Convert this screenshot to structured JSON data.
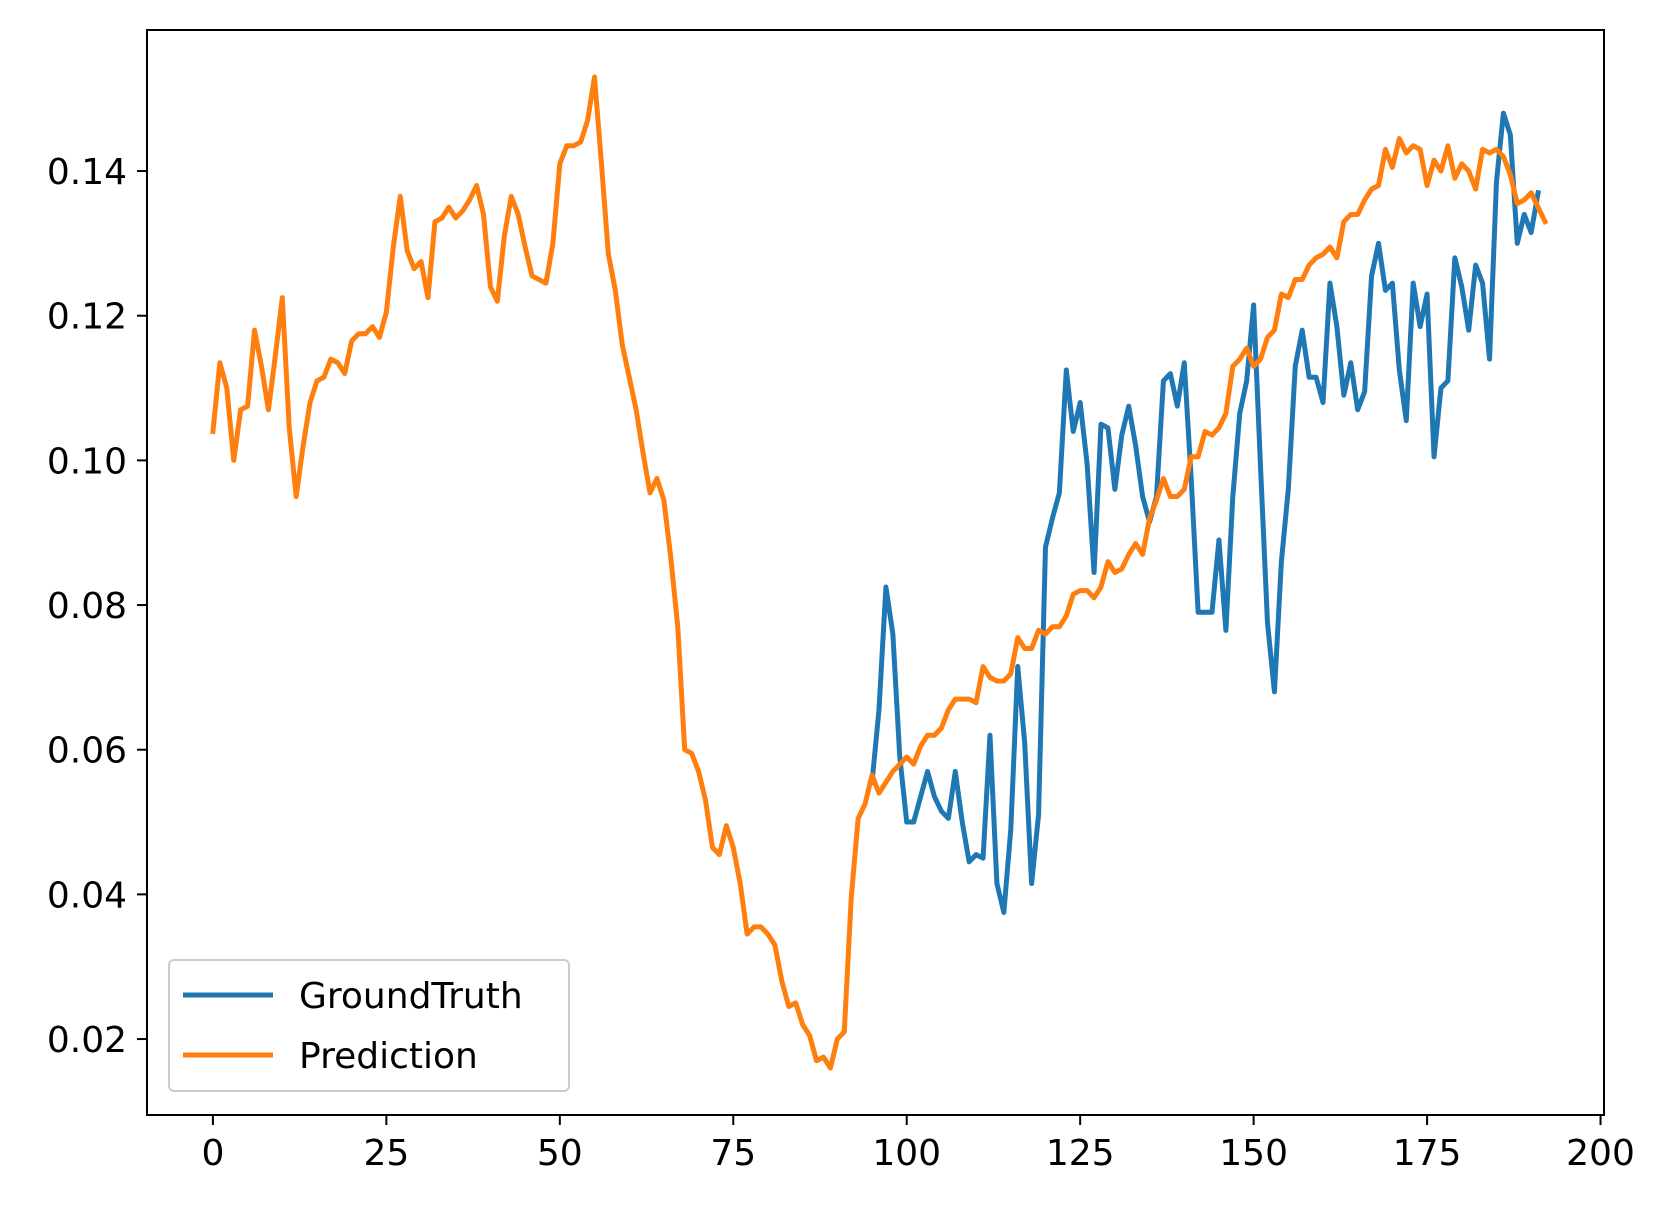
{
  "chart_data": {
    "type": "line",
    "title": "",
    "xlabel": "",
    "ylabel": "",
    "xlim": [
      -9.5,
      200.5
    ],
    "ylim": [
      0.0095,
      0.1595
    ],
    "x_ticks": [
      0,
      25,
      50,
      75,
      100,
      125,
      150,
      175,
      200
    ],
    "x_tick_labels": [
      "0",
      "25",
      "50",
      "75",
      "100",
      "125",
      "150",
      "175",
      "200"
    ],
    "y_ticks": [
      0.02,
      0.04,
      0.06,
      0.08,
      0.1,
      0.12,
      0.14
    ],
    "y_tick_labels": [
      "0.02",
      "0.04",
      "0.06",
      "0.08",
      "0.10",
      "0.12",
      "0.14"
    ],
    "grid": false,
    "legend_position": "lower-left",
    "series": [
      {
        "name": "GroundTruth",
        "color": "#1f77b4",
        "x_start": 95,
        "values": [
          0.0555,
          0.0655,
          0.0825,
          0.076,
          0.059,
          0.05,
          0.05,
          0.0535,
          0.057,
          0.0535,
          0.0515,
          0.0505,
          0.057,
          0.05,
          0.0445,
          0.0455,
          0.045,
          0.062,
          0.0415,
          0.0375,
          0.049,
          0.0715,
          0.061,
          0.0415,
          0.051,
          0.088,
          0.092,
          0.0955,
          0.1125,
          0.104,
          0.108,
          0.0995,
          0.0845,
          0.105,
          0.1045,
          0.096,
          0.1035,
          0.1075,
          0.102,
          0.095,
          0.0915,
          0.095,
          0.111,
          0.112,
          0.1075,
          0.1135,
          0.0975,
          0.079,
          0.079,
          0.079,
          0.089,
          0.0765,
          0.095,
          0.1065,
          0.111,
          0.1215,
          0.099,
          0.0775,
          0.068,
          0.086,
          0.096,
          0.113,
          0.118,
          0.1115,
          0.1115,
          0.108,
          0.1245,
          0.1185,
          0.109,
          0.1135,
          0.107,
          0.1095,
          0.1255,
          0.13,
          0.1235,
          0.1245,
          0.1125,
          0.1055,
          0.1245,
          0.1185,
          0.123,
          0.1005,
          0.11,
          0.111,
          0.128,
          0.124,
          0.118,
          0.127,
          0.1245,
          0.114,
          0.1385,
          0.148,
          0.145,
          0.13,
          0.134,
          0.1315,
          0.137
        ]
      },
      {
        "name": "Prediction",
        "color": "#ff7f0e",
        "x_start": 0,
        "values": [
          0.104,
          0.1135,
          0.11,
          0.1,
          0.107,
          0.1075,
          0.118,
          0.113,
          0.107,
          0.1145,
          0.1225,
          0.1045,
          0.095,
          0.102,
          0.108,
          0.111,
          0.1115,
          0.114,
          0.1135,
          0.112,
          0.1165,
          0.1175,
          0.1175,
          0.1185,
          0.117,
          0.1205,
          0.1295,
          0.1365,
          0.129,
          0.1265,
          0.1275,
          0.1225,
          0.133,
          0.1335,
          0.135,
          0.1335,
          0.1345,
          0.136,
          0.138,
          0.134,
          0.124,
          0.122,
          0.131,
          0.1365,
          0.134,
          0.1295,
          0.1255,
          0.125,
          0.1245,
          0.13,
          0.141,
          0.1435,
          0.1435,
          0.144,
          0.147,
          0.153,
          0.141,
          0.1285,
          0.1235,
          0.116,
          0.1115,
          0.107,
          0.101,
          0.0955,
          0.0975,
          0.0945,
          0.0865,
          0.077,
          0.06,
          0.0595,
          0.057,
          0.053,
          0.0465,
          0.0455,
          0.0495,
          0.0465,
          0.0415,
          0.0345,
          0.0355,
          0.0355,
          0.0345,
          0.033,
          0.028,
          0.0245,
          0.025,
          0.022,
          0.0205,
          0.017,
          0.0175,
          0.016,
          0.02,
          0.021,
          0.0395,
          0.0505,
          0.0525,
          0.0565,
          0.054,
          0.0555,
          0.057,
          0.058,
          0.059,
          0.058,
          0.0605,
          0.062,
          0.062,
          0.063,
          0.0655,
          0.067,
          0.067,
          0.067,
          0.0665,
          0.0715,
          0.07,
          0.0695,
          0.0695,
          0.0705,
          0.0755,
          0.074,
          0.074,
          0.0765,
          0.076,
          0.077,
          0.077,
          0.0785,
          0.0815,
          0.082,
          0.082,
          0.081,
          0.0825,
          0.086,
          0.0845,
          0.085,
          0.087,
          0.0885,
          0.087,
          0.092,
          0.0945,
          0.0975,
          0.095,
          0.095,
          0.096,
          0.1005,
          0.1005,
          0.104,
          0.1035,
          0.1045,
          0.1065,
          0.113,
          0.114,
          0.1155,
          0.113,
          0.114,
          0.117,
          0.118,
          0.123,
          0.1225,
          0.125,
          0.125,
          0.127,
          0.128,
          0.1285,
          0.1295,
          0.128,
          0.133,
          0.134,
          0.134,
          0.136,
          0.1375,
          0.138,
          0.143,
          0.1405,
          0.1445,
          0.1425,
          0.1435,
          0.143,
          0.138,
          0.1415,
          0.14,
          0.1435,
          0.139,
          0.141,
          0.14,
          0.1375,
          0.143,
          0.1425,
          0.143,
          0.142,
          0.1395,
          0.1355,
          0.136,
          0.137,
          0.135,
          0.133
        ]
      }
    ]
  }
}
